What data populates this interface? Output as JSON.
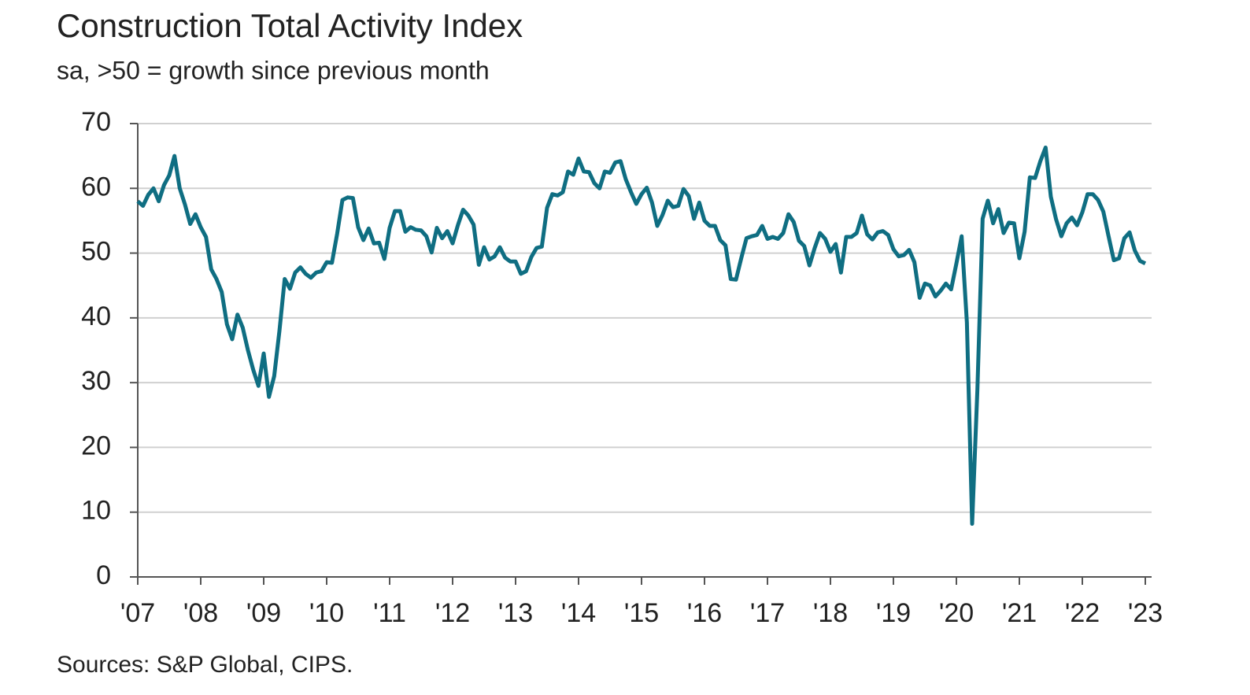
{
  "chart_data": {
    "type": "line",
    "title": "Construction Total Activity Index",
    "subtitle": "sa, >50 = growth since previous month",
    "source": "Sources: S&P Global, CIPS.",
    "categories": [
      "'07",
      null,
      null,
      null,
      null,
      null,
      null,
      null,
      null,
      null,
      null,
      null,
      "'08",
      null,
      null,
      null,
      null,
      null,
      null,
      null,
      null,
      null,
      null,
      null,
      "'09",
      null,
      null,
      null,
      null,
      null,
      null,
      null,
      null,
      null,
      null,
      null,
      "'10",
      null,
      null,
      null,
      null,
      null,
      null,
      null,
      null,
      null,
      null,
      null,
      "'11",
      null,
      null,
      null,
      null,
      null,
      null,
      null,
      null,
      null,
      null,
      null,
      "'12",
      null,
      null,
      null,
      null,
      null,
      null,
      null,
      null,
      null,
      null,
      null,
      "'13",
      null,
      null,
      null,
      null,
      null,
      null,
      null,
      null,
      null,
      null,
      null,
      "'14",
      null,
      null,
      null,
      null,
      null,
      null,
      null,
      null,
      null,
      null,
      null,
      "'15",
      null,
      null,
      null,
      null,
      null,
      null,
      null,
      null,
      null,
      null,
      null,
      "'16",
      null,
      null,
      null,
      null,
      null,
      null,
      null,
      null,
      null,
      null,
      null,
      "'17",
      null,
      null,
      null,
      null,
      null,
      null,
      null,
      null,
      null,
      null,
      null,
      "'18",
      null,
      null,
      null,
      null,
      null,
      null,
      null,
      null,
      null,
      null,
      null,
      "'19",
      null,
      null,
      null,
      null,
      null,
      null,
      null,
      null,
      null,
      null,
      null,
      "'20",
      null,
      null,
      null,
      null,
      null,
      null,
      null,
      null,
      null,
      null,
      null,
      "'21",
      null,
      null,
      null,
      null,
      null,
      null,
      null,
      null,
      null,
      null,
      null,
      "'22",
      null,
      null,
      null,
      null,
      null,
      null,
      null,
      null,
      null,
      null,
      null,
      "'23"
    ],
    "series": [
      {
        "name": "Construction Total Activity Index",
        "color": "#0f6e82",
        "values": [
          58,
          57.3,
          59,
          60,
          58,
          60.5,
          62,
          65,
          60,
          57.5,
          54.5,
          56,
          54,
          52.5,
          47.5,
          46,
          44,
          39,
          36.7,
          40.5,
          38.5,
          35,
          32,
          29.5,
          34.5,
          27.8,
          31,
          38,
          46,
          44.5,
          47,
          47.8,
          46.8,
          46.2,
          47,
          47.2,
          48.6,
          48.5,
          53,
          58.2,
          58.6,
          58.5,
          54,
          52,
          53.8,
          51.5,
          51.6,
          49.1,
          53.9,
          56.5,
          56.5,
          53.3,
          54,
          53.6,
          53.5,
          52.6,
          50.1,
          53.9,
          52.3,
          53.4,
          51.5,
          54.3,
          56.7,
          55.8,
          54.4,
          48.2,
          50.9,
          49.0,
          49.5,
          50.9,
          49.3,
          48.7,
          48.7,
          46.8,
          47.2,
          49.4,
          50.8,
          51.0,
          57.0,
          59.1,
          58.9,
          59.4,
          62.6,
          62.1,
          64.6,
          62.6,
          62.5,
          60.8,
          60.0,
          62.6,
          62.4,
          64.0,
          64.2,
          61.4,
          59.4,
          57.6,
          59.1,
          60.1,
          57.8,
          54.2,
          55.9,
          58.1,
          57.1,
          57.3,
          59.9,
          58.8,
          55.3,
          57.8,
          55.0,
          54.2,
          54.2,
          52.0,
          51.2,
          46.0,
          45.9,
          49.2,
          52.3,
          52.6,
          52.8,
          54.2,
          52.2,
          52.5,
          52.2,
          53.1,
          56.0,
          54.8,
          51.9,
          51.1,
          48.1,
          50.8,
          53.1,
          52.2,
          50.2,
          51.4,
          47.0,
          52.5,
          52.5,
          53.1,
          55.8,
          52.9,
          52.1,
          53.2,
          53.4,
          52.8,
          50.6,
          49.5,
          49.7,
          50.5,
          48.6,
          43.1,
          45.3,
          45.0,
          43.3,
          44.2,
          45.3,
          44.4,
          48.4,
          52.6,
          39.3,
          8.2,
          28.9,
          55.3,
          58.1,
          54.6,
          56.8,
          53.1,
          54.7,
          54.6,
          49.2,
          53.3,
          61.7,
          61.6,
          64.2,
          66.3,
          58.7,
          55.2,
          52.6,
          54.6,
          55.5,
          54.3,
          56.3,
          59.1,
          59.1,
          58.2,
          56.4,
          52.6,
          48.9,
          49.2,
          52.3,
          53.2,
          50.4,
          48.8,
          48.4
        ]
      }
    ],
    "ylim": [
      0,
      70
    ],
    "yticks": [
      0,
      10,
      20,
      30,
      40,
      50,
      60,
      70
    ],
    "grid": true
  }
}
